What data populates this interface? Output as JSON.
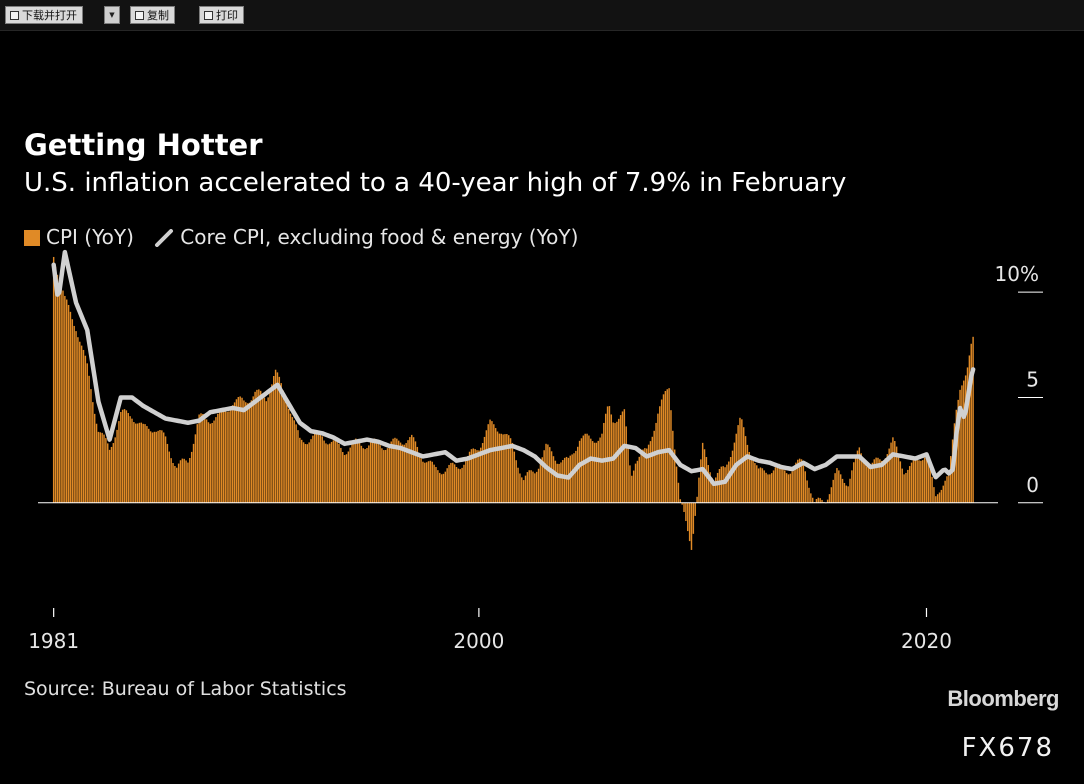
{
  "toolbar": {
    "download_label": "下载并打开",
    "copy_label": "复制",
    "print_label": "打印"
  },
  "colors": {
    "background": "#000000",
    "cpi_bar": "#e08a26",
    "core_line": "#d0d0d0",
    "text": "#ffffff"
  },
  "chart_data": {
    "type": "bar",
    "title": "Getting Hotter",
    "subtitle": "U.S. inflation accelerated to a 40-year high of 7.9% in February",
    "legend_position": "top-left",
    "series": [
      {
        "name": "CPI (YoY)",
        "type": "bar",
        "points": [
          [
            1981.0,
            11.8
          ],
          [
            1981.5,
            9.6
          ],
          [
            1982.0,
            8.4
          ],
          [
            1982.5,
            6.4
          ],
          [
            1983.0,
            3.5
          ],
          [
            1983.5,
            2.5
          ],
          [
            1984.0,
            4.2
          ],
          [
            1984.5,
            4.2
          ],
          [
            1985.0,
            3.5
          ],
          [
            1985.5,
            3.6
          ],
          [
            1986.0,
            3.0
          ],
          [
            1986.5,
            1.7
          ],
          [
            1987.0,
            2.0
          ],
          [
            1987.5,
            4.0
          ],
          [
            1988.0,
            4.0
          ],
          [
            1988.5,
            4.1
          ],
          [
            1989.0,
            4.8
          ],
          [
            1989.5,
            4.8
          ],
          [
            1990.0,
            5.2
          ],
          [
            1990.5,
            5.0
          ],
          [
            1990.9,
            6.2
          ],
          [
            1991.5,
            4.7
          ],
          [
            1992.0,
            2.9
          ],
          [
            1992.5,
            3.1
          ],
          [
            1993.0,
            3.2
          ],
          [
            1993.5,
            2.8
          ],
          [
            1994.0,
            2.5
          ],
          [
            1994.5,
            2.8
          ],
          [
            1995.0,
            2.8
          ],
          [
            1995.5,
            2.8
          ],
          [
            1996.0,
            2.7
          ],
          [
            1996.5,
            3.0
          ],
          [
            1997.0,
            3.0
          ],
          [
            1997.5,
            2.2
          ],
          [
            1998.0,
            1.6
          ],
          [
            1998.5,
            1.6
          ],
          [
            1999.0,
            1.7
          ],
          [
            1999.5,
            2.1
          ],
          [
            2000.0,
            2.7
          ],
          [
            2000.5,
            3.7
          ],
          [
            2001.0,
            3.5
          ],
          [
            2001.5,
            2.7
          ],
          [
            2002.0,
            1.1
          ],
          [
            2002.5,
            1.5
          ],
          [
            2003.0,
            2.6
          ],
          [
            2003.5,
            2.1
          ],
          [
            2004.0,
            1.9
          ],
          [
            2004.5,
            3.1
          ],
          [
            2005.0,
            3.0
          ],
          [
            2005.5,
            3.2
          ],
          [
            2005.8,
            4.6
          ],
          [
            2006.0,
            4.0
          ],
          [
            2006.5,
            4.2
          ],
          [
            2006.8,
            1.3
          ],
          [
            2007.0,
            2.1
          ],
          [
            2007.5,
            2.4
          ],
          [
            2008.0,
            4.3
          ],
          [
            2008.5,
            5.5
          ],
          [
            2009.0,
            0.0
          ],
          [
            2009.5,
            -2.0
          ],
          [
            2010.0,
            2.6
          ],
          [
            2010.5,
            1.2
          ],
          [
            2011.0,
            1.6
          ],
          [
            2011.7,
            3.9
          ],
          [
            2012.0,
            2.9
          ],
          [
            2012.5,
            1.4
          ],
          [
            2013.0,
            1.6
          ],
          [
            2013.5,
            1.6
          ],
          [
            2014.0,
            1.6
          ],
          [
            2014.5,
            2.0
          ],
          [
            2015.0,
            -0.1
          ],
          [
            2015.5,
            0.2
          ],
          [
            2016.0,
            1.4
          ],
          [
            2016.5,
            1.0
          ],
          [
            2017.0,
            2.5
          ],
          [
            2017.5,
            1.7
          ],
          [
            2018.0,
            2.1
          ],
          [
            2018.5,
            2.9
          ],
          [
            2019.0,
            1.6
          ],
          [
            2019.5,
            1.8
          ],
          [
            2020.0,
            2.5
          ],
          [
            2020.4,
            0.1
          ],
          [
            2020.8,
            1.2
          ],
          [
            2021.0,
            1.4
          ],
          [
            2021.3,
            4.2
          ],
          [
            2021.5,
            5.4
          ],
          [
            2021.8,
            6.2
          ],
          [
            2022.0,
            7.5
          ],
          [
            2022.1,
            7.9
          ]
        ]
      },
      {
        "name": "Core CPI, excluding food & energy (YoY)",
        "type": "line",
        "points": [
          [
            1981.0,
            11.3
          ],
          [
            1981.2,
            9.6
          ],
          [
            1981.5,
            11.9
          ],
          [
            1982.0,
            9.5
          ],
          [
            1982.5,
            8.2
          ],
          [
            1983.0,
            4.8
          ],
          [
            1983.5,
            3.0
          ],
          [
            1984.0,
            5.0
          ],
          [
            1984.5,
            5.0
          ],
          [
            1985.0,
            4.6
          ],
          [
            1985.5,
            4.3
          ],
          [
            1986.0,
            4.0
          ],
          [
            1987.0,
            3.8
          ],
          [
            1987.5,
            3.9
          ],
          [
            1988.0,
            4.3
          ],
          [
            1988.5,
            4.4
          ],
          [
            1989.0,
            4.5
          ],
          [
            1989.5,
            4.4
          ],
          [
            1990.0,
            4.8
          ],
          [
            1990.5,
            5.2
          ],
          [
            1991.0,
            5.6
          ],
          [
            1991.5,
            4.7
          ],
          [
            1992.0,
            3.8
          ],
          [
            1992.5,
            3.4
          ],
          [
            1993.0,
            3.3
          ],
          [
            1993.5,
            3.1
          ],
          [
            1994.0,
            2.8
          ],
          [
            1994.5,
            2.9
          ],
          [
            1995.0,
            3.0
          ],
          [
            1995.5,
            2.9
          ],
          [
            1996.0,
            2.7
          ],
          [
            1996.5,
            2.6
          ],
          [
            1997.0,
            2.4
          ],
          [
            1997.5,
            2.2
          ],
          [
            1998.0,
            2.3
          ],
          [
            1998.5,
            2.4
          ],
          [
            1999.0,
            2.0
          ],
          [
            1999.5,
            2.1
          ],
          [
            2000.0,
            2.3
          ],
          [
            2000.5,
            2.5
          ],
          [
            2001.0,
            2.6
          ],
          [
            2001.5,
            2.7
          ],
          [
            2002.0,
            2.5
          ],
          [
            2002.5,
            2.2
          ],
          [
            2003.0,
            1.7
          ],
          [
            2003.5,
            1.3
          ],
          [
            2004.0,
            1.2
          ],
          [
            2004.5,
            1.8
          ],
          [
            2005.0,
            2.1
          ],
          [
            2005.5,
            2.0
          ],
          [
            2006.0,
            2.1
          ],
          [
            2006.5,
            2.7
          ],
          [
            2007.0,
            2.6
          ],
          [
            2007.5,
            2.2
          ],
          [
            2008.0,
            2.4
          ],
          [
            2008.5,
            2.5
          ],
          [
            2009.0,
            1.8
          ],
          [
            2009.5,
            1.5
          ],
          [
            2010.0,
            1.6
          ],
          [
            2010.5,
            0.9
          ],
          [
            2011.0,
            1.0
          ],
          [
            2011.5,
            1.8
          ],
          [
            2012.0,
            2.2
          ],
          [
            2012.5,
            2.0
          ],
          [
            2013.0,
            1.9
          ],
          [
            2013.5,
            1.7
          ],
          [
            2014.0,
            1.6
          ],
          [
            2014.5,
            1.9
          ],
          [
            2015.0,
            1.6
          ],
          [
            2015.5,
            1.8
          ],
          [
            2016.0,
            2.2
          ],
          [
            2016.5,
            2.2
          ],
          [
            2017.0,
            2.2
          ],
          [
            2017.5,
            1.7
          ],
          [
            2018.0,
            1.8
          ],
          [
            2018.5,
            2.3
          ],
          [
            2019.0,
            2.2
          ],
          [
            2019.5,
            2.1
          ],
          [
            2020.0,
            2.3
          ],
          [
            2020.4,
            1.2
          ],
          [
            2020.8,
            1.6
          ],
          [
            2021.0,
            1.4
          ],
          [
            2021.2,
            1.6
          ],
          [
            2021.3,
            3.0
          ],
          [
            2021.5,
            4.5
          ],
          [
            2021.7,
            4.0
          ],
          [
            2022.0,
            6.0
          ],
          [
            2022.1,
            6.4
          ]
        ]
      }
    ],
    "x_ticks": [
      {
        "value": 1981,
        "label": "1981"
      },
      {
        "value": 2000,
        "label": "2000"
      },
      {
        "value": 2020,
        "label": "2020"
      }
    ],
    "y_ticks": [
      {
        "value": 10,
        "label": "10%"
      },
      {
        "value": 5,
        "label": "5"
      },
      {
        "value": 0,
        "label": "0"
      }
    ],
    "xlim": [
      1980.3,
      2024.0
    ],
    "ylim": [
      -3,
      12
    ],
    "y_axis_side": "right",
    "grid": false
  },
  "source": "Source: Bureau of Labor Statistics",
  "brand": "Bloomberg",
  "watermark": "FX678"
}
